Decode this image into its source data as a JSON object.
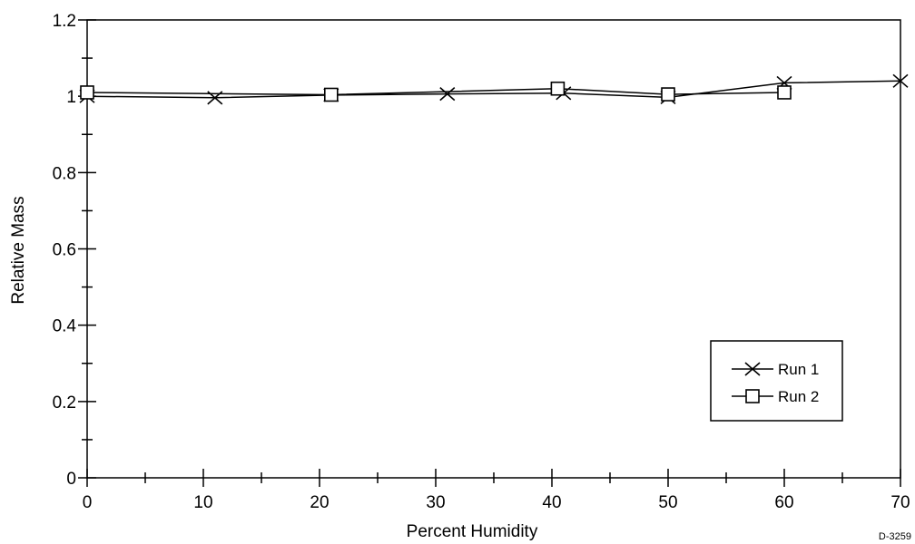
{
  "chart_data": {
    "type": "line",
    "title": "",
    "xlabel": "Percent Humidity",
    "ylabel": "Relative Mass",
    "xlim": [
      0,
      70
    ],
    "ylim": [
      0,
      1.2
    ],
    "x_ticks": [
      "0",
      "10",
      "20",
      "30",
      "40",
      "50",
      "60",
      "70"
    ],
    "y_ticks": [
      "0",
      "0.2",
      "0.4",
      "0.6",
      "0.8",
      "1",
      "1.2"
    ],
    "grid": false,
    "legend_position": "bottom-right",
    "series": [
      {
        "name": "Run 1",
        "marker": "x",
        "x": [
          0,
          11,
          21,
          31,
          41,
          50,
          60,
          70
        ],
        "y": [
          1.0,
          0.996,
          1.003,
          1.006,
          1.008,
          0.997,
          1.035,
          1.04
        ]
      },
      {
        "name": "Run 2",
        "marker": "open-square",
        "x": [
          0,
          21,
          40.5,
          50,
          60
        ],
        "y": [
          1.01,
          1.004,
          1.02,
          1.005,
          1.01
        ]
      }
    ],
    "annotation": "D-3259"
  }
}
